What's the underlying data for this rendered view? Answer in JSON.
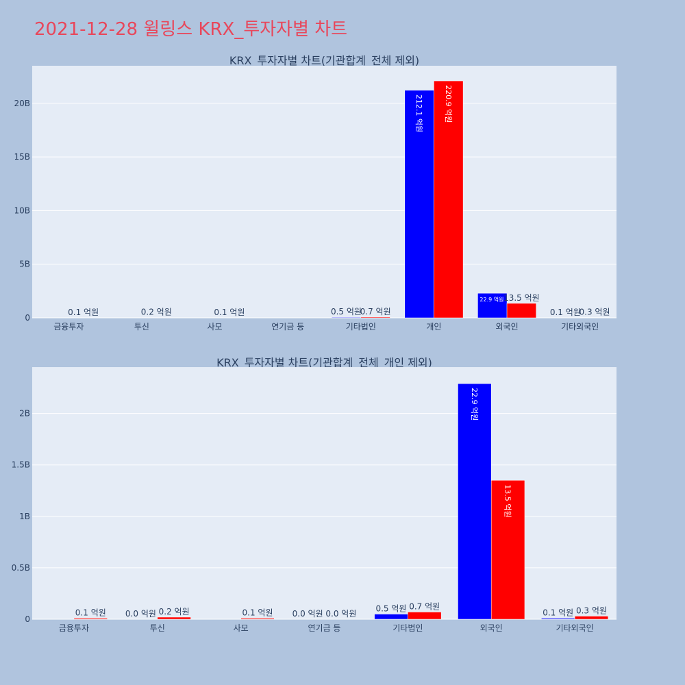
{
  "title": "2021-12-28 윌링스 KRX_투자자별 차트",
  "colors": {
    "background": "#b0c4de",
    "plot_bg": "#e5ecf6",
    "buy": "#0000ff",
    "sell": "#ff0000",
    "title": "#e8475b",
    "text": "#2a3f5f"
  },
  "chart_data": [
    {
      "type": "bar",
      "title": "KRX_투자자별 차트(기관합계_전체 제외)",
      "categories": [
        "금융투자",
        "투신",
        "사모",
        "연기금 등",
        "기타법인",
        "개인",
        "외국인",
        "기타외국인"
      ],
      "ylim": [
        0,
        23.5
      ],
      "y_ticks": [
        {
          "value": 0,
          "label": "0"
        },
        {
          "value": 5,
          "label": "5B"
        },
        {
          "value": 10,
          "label": "10B"
        },
        {
          "value": 15,
          "label": "15B"
        },
        {
          "value": 20,
          "label": "20B"
        }
      ],
      "series": [
        {
          "values": [
            0,
            0,
            0,
            0,
            0.05,
            21.21,
            2.29,
            0.01
          ],
          "labels": [
            "",
            "",
            "",
            "",
            "0.5 억원",
            "212.1 억원",
            "22.9 억원",
            "0.1 억원"
          ]
        },
        {
          "values": [
            0.01,
            0.02,
            0.01,
            0,
            0.07,
            22.09,
            1.35,
            0.03
          ],
          "labels": [
            "0.1 억원",
            "0.2 억원",
            "0.1 억원",
            "",
            "0.7 억원",
            "220.9 억원",
            "13.5 억원",
            "0.3 억원"
          ]
        }
      ],
      "grid": true
    },
    {
      "type": "bar",
      "title": "KRX_투자자별 차트(기관합계_전체_개인 제외)",
      "categories": [
        "금융투자",
        "투신",
        "사모",
        "연기금 등",
        "기타법인",
        "외국인",
        "기타외국인"
      ],
      "ylim": [
        0,
        2.45
      ],
      "y_ticks": [
        {
          "value": 0,
          "label": "0"
        },
        {
          "value": 0.5,
          "label": "0.5B"
        },
        {
          "value": 1,
          "label": "1B"
        },
        {
          "value": 1.5,
          "label": "1.5B"
        },
        {
          "value": 2,
          "label": "2B"
        }
      ],
      "series": [
        {
          "values": [
            0,
            0.001,
            0,
            0.0005,
            0.05,
            2.29,
            0.01
          ],
          "labels": [
            "",
            "0.0 억원",
            "",
            "0.0 억원",
            "0.5 억원",
            "22.9 억원",
            "0.1 억원"
          ]
        },
        {
          "values": [
            0.01,
            0.02,
            0.01,
            0.0005,
            0.07,
            1.35,
            0.03
          ],
          "labels": [
            "0.1 억원",
            "0.2 억원",
            "0.1 억원",
            "0.0 억원",
            "0.7 억원",
            "13.5 억원",
            "0.3 억원"
          ]
        }
      ],
      "grid": true
    }
  ]
}
